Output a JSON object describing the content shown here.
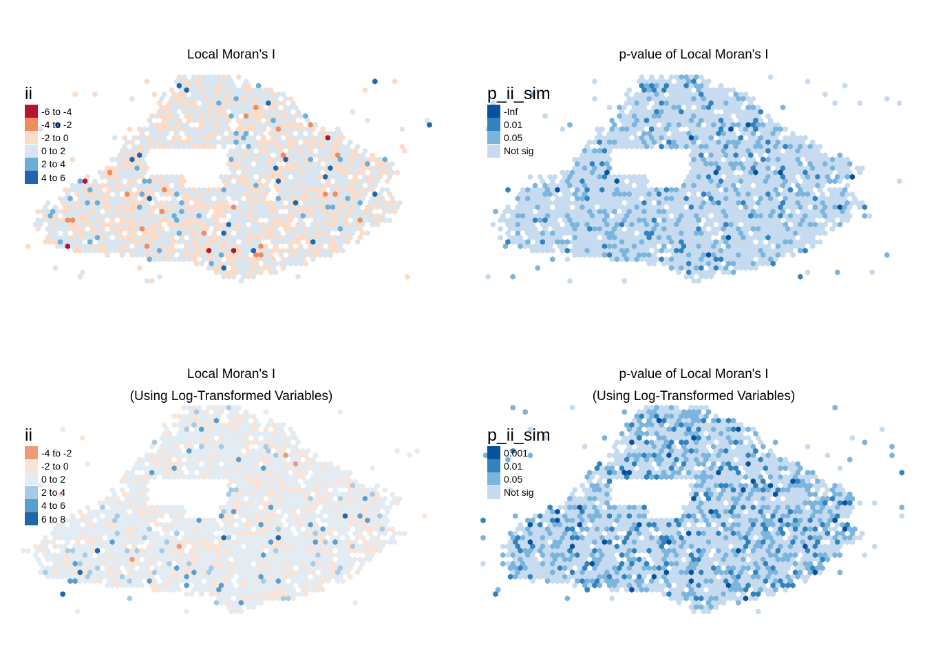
{
  "panels": [
    {
      "title_lines": [
        "Local Moran's I"
      ],
      "legend": {
        "title": "ii",
        "items": [
          {
            "label": "-6 to -4",
            "color": "#b2182b"
          },
          {
            "label": "-4 to -2",
            "color": "#ef8a62"
          },
          {
            "label": "-2 to 0",
            "color": "#fddbc7"
          },
          {
            "label": "0 to 2",
            "color": "#d9e6ef"
          },
          {
            "label": "2 to 4",
            "color": "#6baed6"
          },
          {
            "label": "4 to 6",
            "color": "#2166ac"
          }
        ]
      }
    },
    {
      "title_lines": [
        "p-value of Local Moran's I"
      ],
      "legend": {
        "title": "p_ii_sim",
        "items": [
          {
            "label": "-Inf",
            "color": "#08519c"
          },
          {
            "label": "0.01",
            "color": "#3182bd"
          },
          {
            "label": "0.05",
            "color": "#7bb4dc"
          },
          {
            "label": "Not sig",
            "color": "#c6dbef"
          }
        ]
      }
    },
    {
      "title_lines": [
        "Local Moran's I",
        "(Using Log-Transformed Variables)"
      ],
      "legend": {
        "title": "ii",
        "items": [
          {
            "label": "-4 to -2",
            "color": "#ef9a76"
          },
          {
            "label": "-2 to 0",
            "color": "#fbe3d6"
          },
          {
            "label": "0 to 2",
            "color": "#e3ecf2"
          },
          {
            "label": "2 to 4",
            "color": "#a6cbe3"
          },
          {
            "label": "4 to 6",
            "color": "#5a9dcf"
          },
          {
            "label": "6 to 8",
            "color": "#2166ac"
          }
        ]
      }
    },
    {
      "title_lines": [
        "p-value of Local Moran's I",
        "(Using Log-Transformed Variables)"
      ],
      "legend": {
        "title": "p_ii_sim",
        "items": [
          {
            "label": "0.001",
            "color": "#08519c"
          },
          {
            "label": "0.01",
            "color": "#3182bd"
          },
          {
            "label": "0.05",
            "color": "#7bb4dc"
          },
          {
            "label": "Not sig",
            "color": "#c6dbef"
          }
        ]
      }
    }
  ]
}
